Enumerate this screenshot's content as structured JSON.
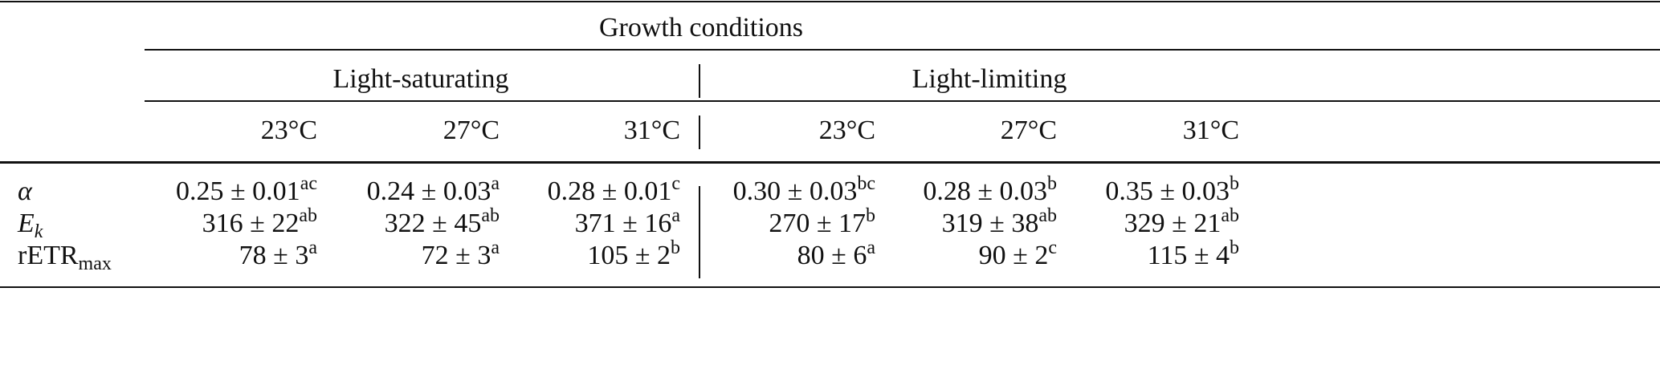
{
  "header": {
    "group": "Growth conditions",
    "subgroups": [
      "Light-saturating",
      "Light-limiting"
    ],
    "temperatures": [
      "23°C",
      "27°C",
      "31°C",
      "23°C",
      "27°C",
      "31°C"
    ]
  },
  "rows": [
    {
      "label": "α",
      "label_italic": true,
      "cells": [
        {
          "value": "0.25 ± 0.01",
          "sup": "ac"
        },
        {
          "value": "0.24 ± 0.03",
          "sup": "a"
        },
        {
          "value": "0.28 ± 0.01",
          "sup": "c"
        },
        {
          "value": "0.30 ± 0.03",
          "sup": "bc"
        },
        {
          "value": "0.28 ± 0.03",
          "sup": "b"
        },
        {
          "value": "0.35 ± 0.03",
          "sup": "b"
        }
      ]
    },
    {
      "label": "E",
      "label_sub": "k",
      "label_italic": true,
      "cells": [
        {
          "value": "316 ± 22",
          "sup": "ab"
        },
        {
          "value": "322 ± 45",
          "sup": "ab"
        },
        {
          "value": "371 ± 16",
          "sup": "a"
        },
        {
          "value": "270 ± 17",
          "sup": "b"
        },
        {
          "value": "319 ± 38",
          "sup": "ab"
        },
        {
          "value": "329 ± 21",
          "sup": "ab"
        }
      ]
    },
    {
      "label": "rETR",
      "label_sub": "max",
      "label_italic": false,
      "cells": [
        {
          "value": "78 ± 3",
          "sup": "a"
        },
        {
          "value": "72 ± 3",
          "sup": "a"
        },
        {
          "value": "105 ± 2",
          "sup": "b"
        },
        {
          "value": "80 ± 6",
          "sup": "a"
        },
        {
          "value": "90 ± 2",
          "sup": "c"
        },
        {
          "value": "115 ± 4",
          "sup": "b"
        }
      ]
    }
  ]
}
